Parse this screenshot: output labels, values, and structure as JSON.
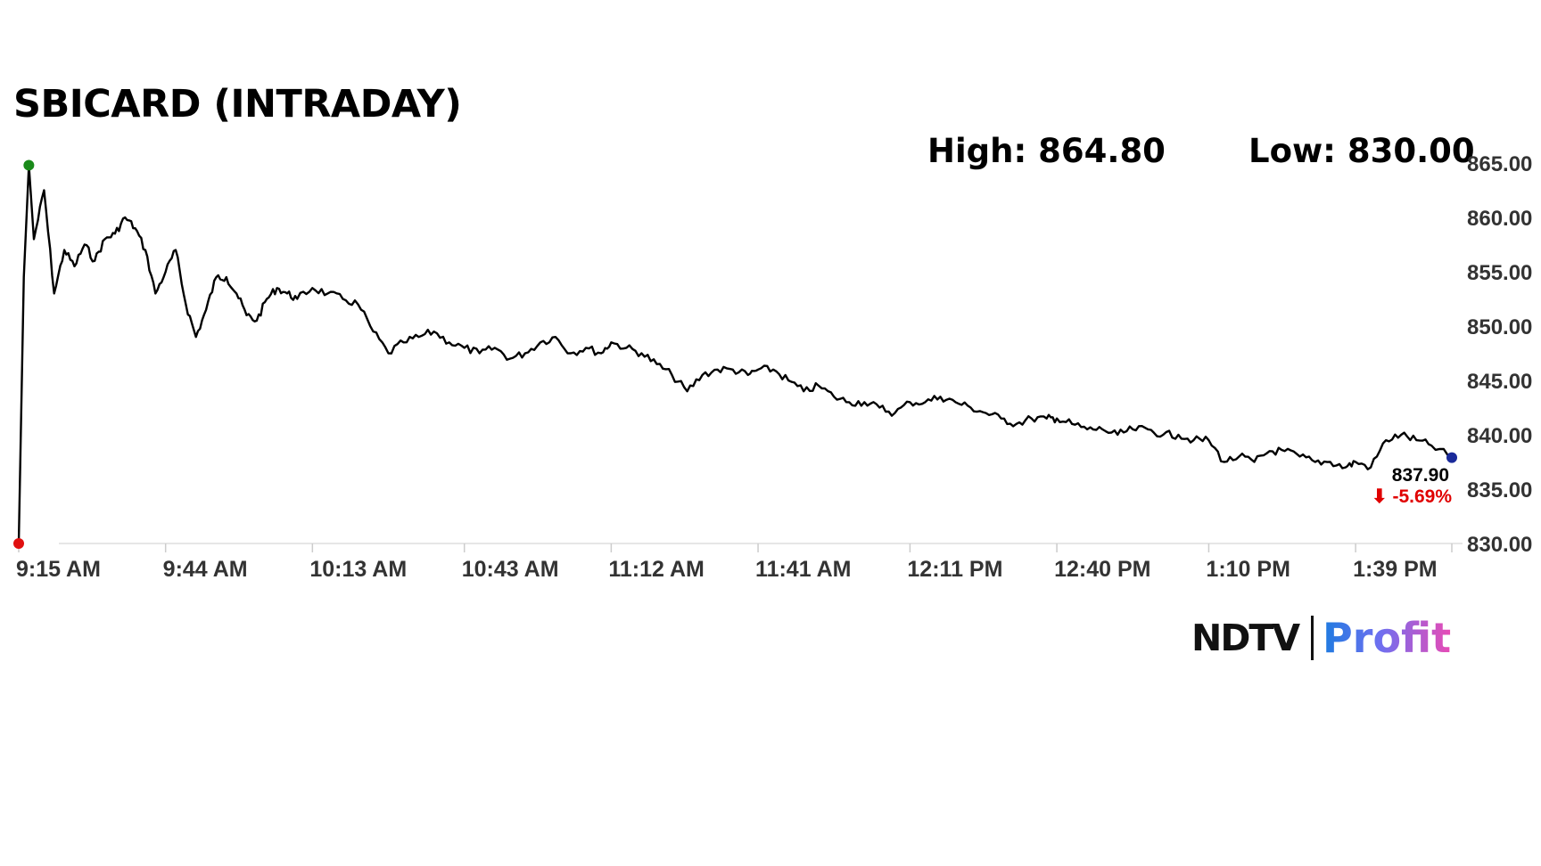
{
  "header": {
    "title": "SBICARD (INTRADAY)",
    "high_label": "High: 864.80",
    "low_label": "Low: 830.00"
  },
  "logo": {
    "ndtv": "NDTV",
    "profit": "Profit"
  },
  "last": {
    "price": "837.90",
    "change": "⬇ -5.69%"
  },
  "colors": {
    "line": "#000000",
    "high_marker": "#1a8a1a",
    "low_marker": "#e01010",
    "last_marker": "#1a2a9a",
    "change": "#e00000"
  },
  "chart_data": {
    "type": "line",
    "title": "SBICARD (INTRADAY)",
    "xlabel": "",
    "ylabel": "",
    "ylim": [
      830,
      865
    ],
    "y_ticks": [
      "830.00",
      "835.00",
      "840.00",
      "845.00",
      "850.00",
      "855.00",
      "860.00",
      "865.00"
    ],
    "x_ticks": [
      "9:15 AM",
      "9:44 AM",
      "10:13 AM",
      "10:43 AM",
      "11:12 AM",
      "11:41 AM",
      "12:11 PM",
      "12:40 PM",
      "1:10 PM",
      "1:39 PM"
    ],
    "grid": false,
    "x_time": [
      "9:15",
      "9:16",
      "9:17",
      "9:18",
      "9:20",
      "9:22",
      "9:24",
      "9:26",
      "9:28",
      "9:30",
      "9:32",
      "9:34",
      "9:36",
      "9:38",
      "9:40",
      "9:42",
      "9:44",
      "9:46",
      "9:48",
      "9:50",
      "9:52",
      "9:54",
      "9:56",
      "9:58",
      "10:00",
      "10:02",
      "10:04",
      "10:06",
      "10:08",
      "10:10",
      "10:13",
      "10:16",
      "10:19",
      "10:22",
      "10:25",
      "10:28",
      "10:31",
      "10:34",
      "10:37",
      "10:40",
      "10:43",
      "10:46",
      "10:49",
      "10:52",
      "10:55",
      "10:58",
      "11:01",
      "11:04",
      "11:07",
      "11:10",
      "11:12",
      "11:15",
      "11:18",
      "11:21",
      "11:24",
      "11:27",
      "11:30",
      "11:33",
      "11:36",
      "11:39",
      "11:41",
      "11:44",
      "11:47",
      "11:50",
      "11:53",
      "11:56",
      "11:59",
      "12:02",
      "12:05",
      "12:08",
      "12:11",
      "12:14",
      "12:17",
      "12:20",
      "12:23",
      "12:26",
      "12:29",
      "12:32",
      "12:35",
      "12:38",
      "12:40",
      "12:43",
      "12:46",
      "12:49",
      "12:52",
      "12:55",
      "12:58",
      "13:01",
      "13:04",
      "13:07",
      "13:10",
      "13:13",
      "13:16",
      "13:19",
      "13:22",
      "13:25",
      "13:28",
      "13:31",
      "13:34",
      "13:37",
      "13:39",
      "13:42",
      "13:45",
      "13:48",
      "13:51",
      "13:54",
      "13:58"
    ],
    "series": [
      {
        "values": [
          830.0,
          854.5,
          864.8,
          858.0,
          862.5,
          853.0,
          857.0,
          855.5,
          857.5,
          856.0,
          858.0,
          858.5,
          860.0,
          859.0,
          857.0,
          853.0,
          855.0,
          857.0,
          852.0,
          849.0,
          851.5,
          854.5,
          854.5,
          853.0,
          851.0,
          850.5,
          852.5,
          853.5,
          853.0,
          852.5,
          853.5,
          853.0,
          852.5,
          852.0,
          849.5,
          847.5,
          848.5,
          849.0,
          849.5,
          848.5,
          848.0,
          847.5,
          848.0,
          847.0,
          847.5,
          848.5,
          849.0,
          847.5,
          848.0,
          847.5,
          848.5,
          848.0,
          847.5,
          846.5,
          845.5,
          844.0,
          845.5,
          846.0,
          846.0,
          845.5,
          846.0,
          846.0,
          845.0,
          844.0,
          844.5,
          843.5,
          843.0,
          843.0,
          842.5,
          842.0,
          843.0,
          843.0,
          843.5,
          843.0,
          842.5,
          842.0,
          841.5,
          841.0,
          841.5,
          841.5,
          841.5,
          841.0,
          840.5,
          840.5,
          840.0,
          840.5,
          840.5,
          840.0,
          840.0,
          839.5,
          839.5,
          837.5,
          838.0,
          837.5,
          838.5,
          838.5,
          838.0,
          837.5,
          837.5,
          837.0,
          837.5,
          837.0,
          839.5,
          840.0,
          839.5,
          839.0,
          837.9
        ]
      }
    ],
    "high": 864.8,
    "low": 830.0,
    "last": 837.9,
    "change_pct": -5.69
  }
}
